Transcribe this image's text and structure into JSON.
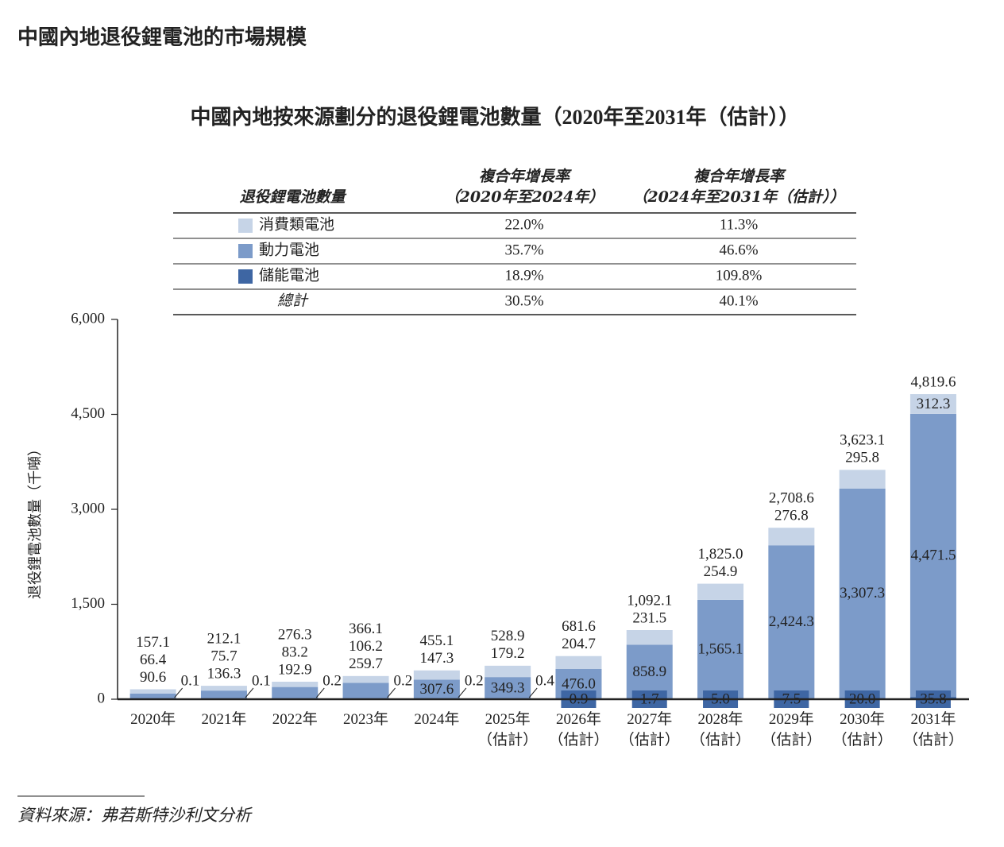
{
  "header": {
    "title": "中國內地退役鋰電池的市場規模"
  },
  "chart_data": {
    "type": "stacked_bar",
    "title": "中國內地按來源劃分的退役鋰電池數量（2020年至2031年（估計））",
    "y_label": "退役鋰電池數量（千噸）",
    "categories": [
      "2020年",
      "2021年",
      "2022年",
      "2023年",
      "2024年",
      "2025年\n（估計）",
      "2026年\n（估計）",
      "2027年\n（估計）",
      "2028年\n（估計）",
      "2029年\n（估計）",
      "2030年\n（估計）",
      "2031年\n（估計）"
    ],
    "series": [
      {
        "name": "消費類電池",
        "color": "#c6d4e7",
        "values": [
          66.4,
          75.7,
          83.2,
          106.2,
          147.3,
          179.2,
          204.7,
          231.5,
          254.9,
          276.8,
          295.8,
          312.3
        ],
        "value_labels": [
          "66.4",
          "75.7",
          "83.2",
          "106.2",
          "147.3",
          "179.2",
          "204.7",
          "231.5",
          "254.9",
          "276.8",
          "295.8",
          "312.3"
        ]
      },
      {
        "name": "動力電池",
        "color": "#7c9bc9",
        "values": [
          90.6,
          136.3,
          192.9,
          259.7,
          307.6,
          349.3,
          476.0,
          858.9,
          1565.1,
          2424.3,
          3307.3,
          4471.5
        ],
        "value_labels": [
          "90.6",
          "136.3",
          "192.9",
          "259.7",
          "307.6",
          "349.3",
          "476.0",
          "858.9",
          "1,565.1",
          "2,424.3",
          "3,307.3",
          "4,471.5"
        ]
      },
      {
        "name": "儲能電池",
        "color": "#3e66a3",
        "values": [
          0.1,
          0.1,
          0.2,
          0.2,
          0.2,
          0.4,
          0.9,
          1.7,
          5.0,
          7.5,
          20.0,
          35.8
        ],
        "value_labels": [
          "0.1",
          "0.1",
          "0.2",
          "0.2",
          "0.2",
          "0.4",
          "0.9",
          "1.7",
          "5.0",
          "7.5",
          "20.0",
          "35.8"
        ]
      }
    ],
    "totals": {
      "values": [
        157.1,
        212.1,
        276.3,
        366.1,
        455.1,
        528.9,
        681.6,
        1092.1,
        1825.0,
        2708.6,
        3623.1,
        4819.6
      ],
      "value_labels": [
        "157.1",
        "212.1",
        "276.3",
        "366.1",
        "455.1",
        "528.9",
        "681.6",
        "1,092.1",
        "1,825.0",
        "2,708.6",
        "3,623.1",
        "4,819.6"
      ]
    },
    "ylim": [
      0,
      6000
    ],
    "yticks": [
      0,
      {
        "value": 1500,
        "label": "1,500"
      },
      {
        "value": 3000,
        "label": "3,000"
      },
      {
        "value": 4500,
        "label": "4,500"
      },
      {
        "value": 6000,
        "label": "6,000"
      }
    ]
  },
  "cagr_table": {
    "headers": [
      "退役鋰電池數量",
      "複合年增長率\n（2020年至2024年）",
      "複合年增長率\n（2024年至2031年（估計））"
    ],
    "rows": [
      [
        "22.0%",
        "11.3%"
      ],
      [
        "35.7%",
        "46.6%"
      ],
      [
        "18.9%",
        "109.8%"
      ]
    ],
    "total_row": {
      "label": "總計",
      "cells": [
        "30.5%",
        "40.1%"
      ]
    }
  },
  "source": "資料來源：弗若斯特沙利文分析"
}
